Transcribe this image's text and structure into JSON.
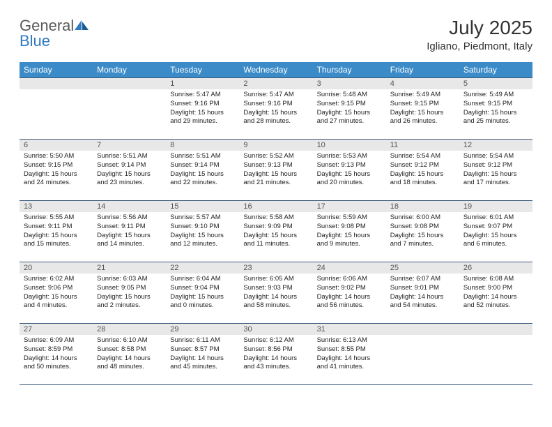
{
  "brand": {
    "general": "General",
    "blue": "Blue"
  },
  "title": "July 2025",
  "location": "Igliano, Piedmont, Italy",
  "header_bg": "#3b8bc8",
  "cell_border": "#3b5a7a",
  "daynum_bg": "#e8e8e8",
  "weekdays": [
    "Sunday",
    "Monday",
    "Tuesday",
    "Wednesday",
    "Thursday",
    "Friday",
    "Saturday"
  ],
  "first_weekday_index": 2,
  "days": [
    {
      "n": 1,
      "sunrise": "5:47 AM",
      "sunset": "9:16 PM",
      "dl_h": 15,
      "dl_m": 29
    },
    {
      "n": 2,
      "sunrise": "5:47 AM",
      "sunset": "9:16 PM",
      "dl_h": 15,
      "dl_m": 28
    },
    {
      "n": 3,
      "sunrise": "5:48 AM",
      "sunset": "9:15 PM",
      "dl_h": 15,
      "dl_m": 27
    },
    {
      "n": 4,
      "sunrise": "5:49 AM",
      "sunset": "9:15 PM",
      "dl_h": 15,
      "dl_m": 26
    },
    {
      "n": 5,
      "sunrise": "5:49 AM",
      "sunset": "9:15 PM",
      "dl_h": 15,
      "dl_m": 25
    },
    {
      "n": 6,
      "sunrise": "5:50 AM",
      "sunset": "9:15 PM",
      "dl_h": 15,
      "dl_m": 24
    },
    {
      "n": 7,
      "sunrise": "5:51 AM",
      "sunset": "9:14 PM",
      "dl_h": 15,
      "dl_m": 23
    },
    {
      "n": 8,
      "sunrise": "5:51 AM",
      "sunset": "9:14 PM",
      "dl_h": 15,
      "dl_m": 22
    },
    {
      "n": 9,
      "sunrise": "5:52 AM",
      "sunset": "9:13 PM",
      "dl_h": 15,
      "dl_m": 21
    },
    {
      "n": 10,
      "sunrise": "5:53 AM",
      "sunset": "9:13 PM",
      "dl_h": 15,
      "dl_m": 20
    },
    {
      "n": 11,
      "sunrise": "5:54 AM",
      "sunset": "9:12 PM",
      "dl_h": 15,
      "dl_m": 18
    },
    {
      "n": 12,
      "sunrise": "5:54 AM",
      "sunset": "9:12 PM",
      "dl_h": 15,
      "dl_m": 17
    },
    {
      "n": 13,
      "sunrise": "5:55 AM",
      "sunset": "9:11 PM",
      "dl_h": 15,
      "dl_m": 15
    },
    {
      "n": 14,
      "sunrise": "5:56 AM",
      "sunset": "9:11 PM",
      "dl_h": 15,
      "dl_m": 14
    },
    {
      "n": 15,
      "sunrise": "5:57 AM",
      "sunset": "9:10 PM",
      "dl_h": 15,
      "dl_m": 12
    },
    {
      "n": 16,
      "sunrise": "5:58 AM",
      "sunset": "9:09 PM",
      "dl_h": 15,
      "dl_m": 11
    },
    {
      "n": 17,
      "sunrise": "5:59 AM",
      "sunset": "9:08 PM",
      "dl_h": 15,
      "dl_m": 9
    },
    {
      "n": 18,
      "sunrise": "6:00 AM",
      "sunset": "9:08 PM",
      "dl_h": 15,
      "dl_m": 7
    },
    {
      "n": 19,
      "sunrise": "6:01 AM",
      "sunset": "9:07 PM",
      "dl_h": 15,
      "dl_m": 6
    },
    {
      "n": 20,
      "sunrise": "6:02 AM",
      "sunset": "9:06 PM",
      "dl_h": 15,
      "dl_m": 4
    },
    {
      "n": 21,
      "sunrise": "6:03 AM",
      "sunset": "9:05 PM",
      "dl_h": 15,
      "dl_m": 2
    },
    {
      "n": 22,
      "sunrise": "6:04 AM",
      "sunset": "9:04 PM",
      "dl_h": 15,
      "dl_m": 0
    },
    {
      "n": 23,
      "sunrise": "6:05 AM",
      "sunset": "9:03 PM",
      "dl_h": 14,
      "dl_m": 58
    },
    {
      "n": 24,
      "sunrise": "6:06 AM",
      "sunset": "9:02 PM",
      "dl_h": 14,
      "dl_m": 56
    },
    {
      "n": 25,
      "sunrise": "6:07 AM",
      "sunset": "9:01 PM",
      "dl_h": 14,
      "dl_m": 54
    },
    {
      "n": 26,
      "sunrise": "6:08 AM",
      "sunset": "9:00 PM",
      "dl_h": 14,
      "dl_m": 52
    },
    {
      "n": 27,
      "sunrise": "6:09 AM",
      "sunset": "8:59 PM",
      "dl_h": 14,
      "dl_m": 50
    },
    {
      "n": 28,
      "sunrise": "6:10 AM",
      "sunset": "8:58 PM",
      "dl_h": 14,
      "dl_m": 48
    },
    {
      "n": 29,
      "sunrise": "6:11 AM",
      "sunset": "8:57 PM",
      "dl_h": 14,
      "dl_m": 45
    },
    {
      "n": 30,
      "sunrise": "6:12 AM",
      "sunset": "8:56 PM",
      "dl_h": 14,
      "dl_m": 43
    },
    {
      "n": 31,
      "sunrise": "6:13 AM",
      "sunset": "8:55 PM",
      "dl_h": 14,
      "dl_m": 41
    }
  ],
  "labels": {
    "sunrise": "Sunrise:",
    "sunset": "Sunset:",
    "daylight": "Daylight:",
    "hours": "hours",
    "and": "and",
    "minutes": "minutes."
  }
}
